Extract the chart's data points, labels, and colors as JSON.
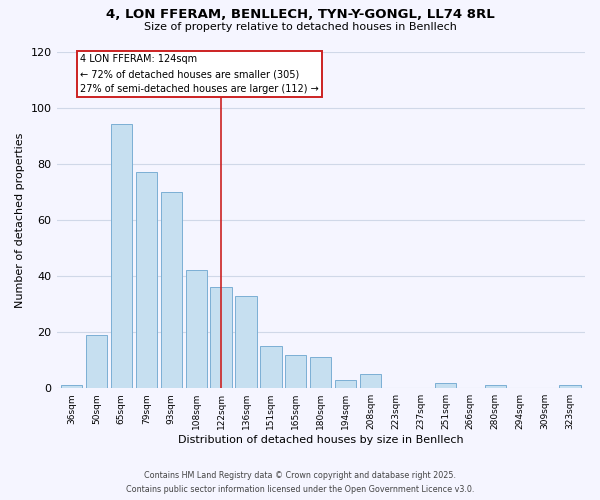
{
  "title": "4, LON FFERAM, BENLLECH, TYN-Y-GONGL, LL74 8RL",
  "subtitle": "Size of property relative to detached houses in Benllech",
  "xlabel": "Distribution of detached houses by size in Benllech",
  "ylabel": "Number of detached properties",
  "categories": [
    "36sqm",
    "50sqm",
    "65sqm",
    "79sqm",
    "93sqm",
    "108sqm",
    "122sqm",
    "136sqm",
    "151sqm",
    "165sqm",
    "180sqm",
    "194sqm",
    "208sqm",
    "223sqm",
    "237sqm",
    "251sqm",
    "266sqm",
    "280sqm",
    "294sqm",
    "309sqm",
    "323sqm"
  ],
  "values": [
    1,
    19,
    94,
    77,
    70,
    42,
    36,
    33,
    15,
    12,
    11,
    3,
    5,
    0,
    0,
    2,
    0,
    1,
    0,
    0,
    1
  ],
  "bar_color": "#c6dff0",
  "bar_edge_color": "#7bafd4",
  "ylim": [
    0,
    120
  ],
  "yticks": [
    0,
    20,
    40,
    60,
    80,
    100,
    120
  ],
  "annotation_title": "4 LON FFERAM: 124sqm",
  "annotation_line1": "← 72% of detached houses are smaller (305)",
  "annotation_line2": "27% of semi-detached houses are larger (112) →",
  "vline_index": 6,
  "footer_line1": "Contains HM Land Registry data © Crown copyright and database right 2025.",
  "footer_line2": "Contains public sector information licensed under the Open Government Licence v3.0.",
  "background_color": "#f5f5ff",
  "grid_color": "#d0d8e8",
  "annotation_box_color": "white",
  "annotation_border_color": "#cc2222",
  "vline_color": "#cc2222"
}
